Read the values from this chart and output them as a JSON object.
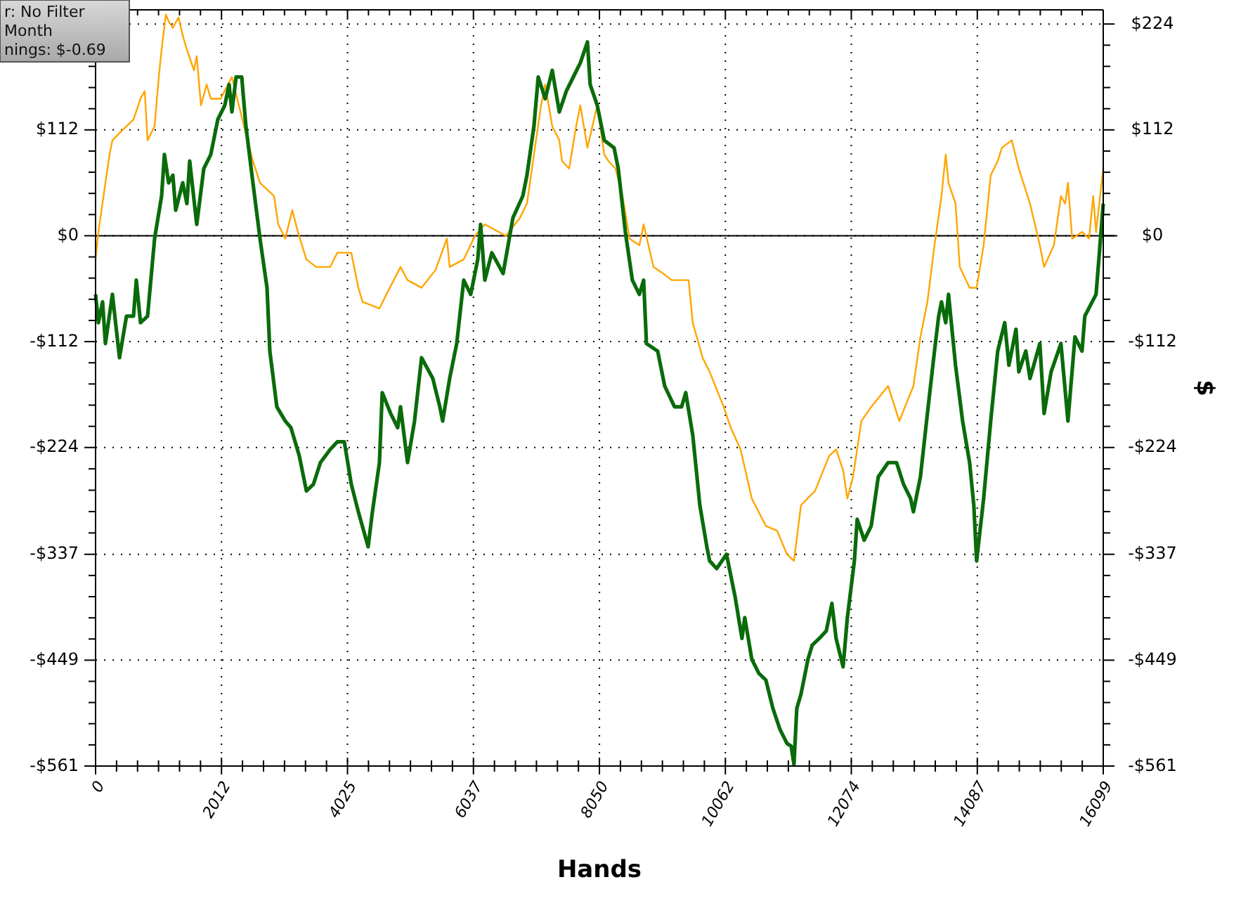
{
  "chart_data": {
    "type": "line",
    "xlabel": "Hands",
    "y2label": "$",
    "annotations": [
      "r: No Filter",
      "Month",
      "nings: $-0.69"
    ],
    "xlim": [
      0,
      16099
    ],
    "xticks": [
      0,
      2012,
      4025,
      6037,
      8050,
      10062,
      12074,
      14087,
      16099
    ],
    "ylim": [
      -561,
      239
    ],
    "yticks": [
      {
        "value": -561,
        "label": "-$561"
      },
      {
        "value": -449,
        "label": "-$449"
      },
      {
        "value": -337,
        "label": "-$337"
      },
      {
        "value": -224,
        "label": "-$224"
      },
      {
        "value": -112,
        "label": "-$112"
      },
      {
        "value": 0,
        "label": "$0"
      },
      {
        "value": 112,
        "label": "$112"
      },
      {
        "value": 224,
        "label": null
      }
    ],
    "y2lim": [
      -561,
      239
    ],
    "y2ticks": [
      {
        "value": -561,
        "label": "-$561"
      },
      {
        "value": -449,
        "label": "-$449"
      },
      {
        "value": -337,
        "label": "-$337"
      },
      {
        "value": -224,
        "label": "-$224"
      },
      {
        "value": -112,
        "label": "-$112"
      },
      {
        "value": 0,
        "label": "$0"
      },
      {
        "value": 112,
        "label": "$112"
      },
      {
        "value": 224,
        "label": "$224"
      }
    ],
    "grid": true,
    "marker": "none",
    "line_style": "solid",
    "ref_lines": [
      {
        "axis": "y",
        "value": 0,
        "label": null,
        "color": "#000000"
      }
    ],
    "series": [
      {
        "color": "#ffa500",
        "x": [
          0,
          45,
          157,
          224,
          269,
          449,
          606,
          718,
          786,
          831,
          943,
          1010,
          1055,
          1123,
          1167,
          1235,
          1325,
          1392,
          1459,
          1572,
          1616,
          1684,
          1774,
          1841,
          1998,
          2178,
          2290,
          2402,
          2514,
          2627,
          2851,
          2919,
          3031,
          3143,
          3233,
          3368,
          3525,
          3749,
          3861,
          4086,
          4198,
          4266,
          4423,
          4535,
          4647,
          4872,
          4984,
          5208,
          5433,
          5613,
          5657,
          5882,
          6062,
          6219,
          6555,
          6780,
          6892,
          7004,
          7117,
          7184,
          7296,
          7409,
          7453,
          7566,
          7678,
          7745,
          7858,
          8015,
          8127,
          8194,
          8307,
          8419,
          8531,
          8688,
          8756,
          8913,
          9070,
          9205,
          9474,
          9541,
          9698,
          9811,
          10035,
          10147,
          10305,
          10484,
          10709,
          10889,
          11045,
          11158,
          11270,
          11494,
          11719,
          11831,
          11943,
          12011,
          12101,
          12235,
          12392,
          12662,
          12841,
          13066,
          13178,
          13290,
          13403,
          13515,
          13582,
          13627,
          13739,
          13807,
          13964,
          14076,
          14188,
          14301,
          14413,
          14480,
          14637,
          14750,
          14929,
          15086,
          15154,
          15311,
          15423,
          15491,
          15535,
          15603,
          15760,
          15872,
          15939,
          15984,
          16099
        ],
        "values": [
          -25,
          4,
          56,
          86,
          101,
          113,
          123,
          145,
          153,
          101,
          116,
          168,
          197,
          234,
          227,
          220,
          231,
          212,
          197,
          175,
          190,
          138,
          160,
          145,
          145,
          168,
          138,
          108,
          79,
          56,
          42,
          12,
          -3,
          27,
          4,
          -25,
          -33,
          -33,
          -18,
          -18,
          -55,
          -70,
          -74,
          -77,
          -62,
          -33,
          -47,
          -55,
          -36,
          -3,
          -33,
          -25,
          0,
          12,
          0,
          19,
          34,
          86,
          138,
          160,
          116,
          101,
          79,
          71,
          116,
          138,
          93,
          138,
          86,
          79,
          71,
          42,
          -3,
          -10,
          12,
          -33,
          -40,
          -47,
          -47,
          -92,
          -129,
          -144,
          -181,
          -203,
          -226,
          -278,
          -307,
          -312,
          -337,
          -344,
          -285,
          -270,
          -233,
          -226,
          -248,
          -278,
          -255,
          -196,
          -181,
          -159,
          -196,
          -159,
          -107,
          -70,
          -10,
          42,
          86,
          56,
          34,
          -33,
          -55,
          -55,
          -10,
          64,
          79,
          93,
          101,
          71,
          34,
          -10,
          -33,
          -10,
          42,
          34,
          56,
          -3,
          4,
          -3,
          42,
          4,
          71
        ]
      },
      {
        "color": "#0a6b0a",
        "x": [
          0,
          45,
          112,
          157,
          269,
          382,
          494,
          606,
          651,
          718,
          831,
          943,
          1055,
          1100,
          1167,
          1235,
          1280,
          1392,
          1459,
          1504,
          1616,
          1729,
          1841,
          1953,
          2065,
          2133,
          2178,
          2245,
          2335,
          2402,
          2514,
          2627,
          2739,
          2784,
          2896,
          3031,
          3121,
          3255,
          3368,
          3480,
          3592,
          3749,
          3861,
          3974,
          4086,
          4198,
          4355,
          4423,
          4535,
          4580,
          4714,
          4827,
          4872,
          4984,
          5096,
          5208,
          5388,
          5500,
          5545,
          5657,
          5770,
          5882,
          5994,
          6106,
          6151,
          6219,
          6331,
          6511,
          6668,
          6825,
          6892,
          7004,
          7072,
          7184,
          7296,
          7409,
          7521,
          7633,
          7745,
          7858,
          7902,
          8015,
          8127,
          8284,
          8351,
          8464,
          8576,
          8688,
          8756,
          8801,
          8980,
          9093,
          9250,
          9362,
          9429,
          9541,
          9654,
          9766,
          9811,
          9923,
          10080,
          10215,
          10327,
          10372,
          10484,
          10597,
          10709,
          10821,
          10933,
          11045,
          11113,
          11158,
          11203,
          11270,
          11382,
          11450,
          11562,
          11674,
          11764,
          11831,
          11943,
          12011,
          12123,
          12168,
          12280,
          12392,
          12505,
          12662,
          12797,
          12909,
          13021,
          13066,
          13178,
          13290,
          13403,
          13470,
          13515,
          13582,
          13627,
          13739,
          13852,
          13964,
          14031,
          14076,
          14188,
          14301,
          14413,
          14525,
          14592,
          14705,
          14750,
          14862,
          14929,
          15086,
          15154,
          15266,
          15423,
          15535,
          15647,
          15760,
          15805,
          15984,
          16029,
          16099
        ],
        "values": [
          -62,
          -92,
          -70,
          -114,
          -62,
          -129,
          -85,
          -85,
          -47,
          -92,
          -85,
          -3,
          42,
          86,
          56,
          64,
          27,
          56,
          34,
          79,
          12,
          71,
          86,
          123,
          138,
          160,
          131,
          168,
          168,
          116,
          56,
          -3,
          -55,
          -122,
          -181,
          -196,
          -203,
          -233,
          -270,
          -263,
          -240,
          -226,
          -218,
          -218,
          -263,
          -292,
          -329,
          -292,
          -240,
          -166,
          -188,
          -203,
          -181,
          -240,
          -196,
          -129,
          -151,
          -181,
          -196,
          -151,
          -114,
          -47,
          -62,
          -25,
          12,
          -47,
          -18,
          -40,
          19,
          42,
          64,
          116,
          168,
          145,
          175,
          131,
          153,
          168,
          183,
          205,
          160,
          138,
          101,
          93,
          71,
          4,
          -47,
          -62,
          -47,
          -114,
          -122,
          -159,
          -181,
          -181,
          -166,
          -211,
          -285,
          -329,
          -344,
          -352,
          -337,
          -381,
          -426,
          -404,
          -448,
          -463,
          -470,
          -500,
          -522,
          -537,
          -540,
          -559,
          -500,
          -485,
          -448,
          -433,
          -426,
          -418,
          -389,
          -426,
          -456,
          -404,
          -344,
          -300,
          -322,
          -307,
          -255,
          -240,
          -240,
          -263,
          -278,
          -292,
          -255,
          -188,
          -122,
          -85,
          -70,
          -92,
          -62,
          -137,
          -196,
          -240,
          -285,
          -344,
          -278,
          -196,
          -122,
          -92,
          -137,
          -99,
          -144,
          -122,
          -151,
          -114,
          -188,
          -144,
          -114,
          -196,
          -107,
          -122,
          -85,
          -62,
          -25,
          34
        ]
      }
    ]
  }
}
